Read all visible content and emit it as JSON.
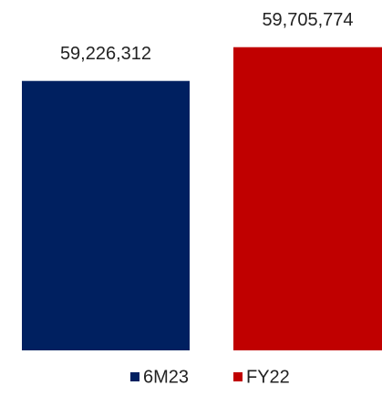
{
  "chart_data": {
    "type": "bar",
    "series": [
      {
        "name": "6M23",
        "color": "#002060",
        "values": [
          59226312
        ],
        "value_labels": [
          "59,226,312"
        ]
      },
      {
        "name": "FY22",
        "color": "#c00000",
        "values": [
          59705774
        ],
        "value_labels": [
          "59,705,774"
        ]
      }
    ],
    "ylim": [
      55400000,
      60000000
    ],
    "grid": false,
    "legend": "bottom"
  }
}
